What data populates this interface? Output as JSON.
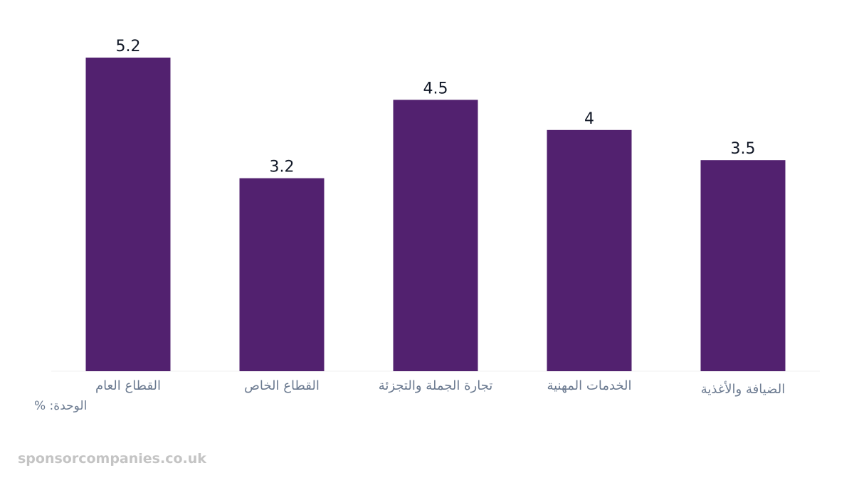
{
  "chart_data": {
    "type": "bar",
    "categories": [
      "القطاع العام",
      "القطاع الخاص",
      "تجارة الجملة والتجزئة",
      "الخدمات المهنية",
      "الضيافة والأغذية"
    ],
    "values": [
      5.2,
      3.2,
      4.5,
      4,
      3.5
    ],
    "value_labels": [
      "5.2",
      "3.2",
      "4.5",
      "4",
      "3.5"
    ],
    "ylim": [
      0,
      5.2
    ],
    "grid": false,
    "bar_color": "#52216f",
    "label_color": "#111827",
    "category_color": "#6b7a90",
    "baseline_color": "#f0f0f0"
  },
  "unit_label": "الوحدة: %",
  "watermark": "sponsorcompanies.co.uk"
}
